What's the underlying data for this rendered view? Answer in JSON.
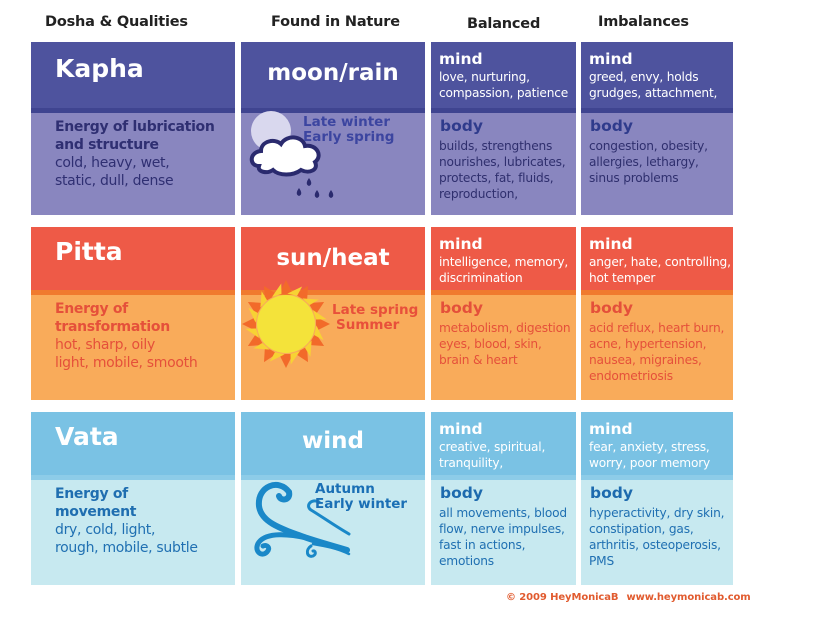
{
  "headers": [
    "Dosha & Qualities",
    "Found in Nature",
    "Balanced",
    "Imbalances"
  ],
  "rows": [
    {
      "dosha": "Kapha",
      "qual_title": [
        "Energy of lubrication",
        "and structure"
      ],
      "qual_text": [
        "cold, heavy, wet,",
        "static, dull, dense"
      ],
      "nature": "moon/rain",
      "season": [
        "Late winter",
        "Early spring"
      ],
      "icon": "moon-rain-icon",
      "balanced": {
        "mind_label": "mind",
        "mind": [
          "love, nurturing,",
          "compassion, patience"
        ],
        "body_label": "body",
        "body": [
          "builds, strengthens",
          "nourishes, lubricates,",
          "protects, fat, fluids,",
          "reproduction,"
        ]
      },
      "imbalances": {
        "mind_label": "mind",
        "mind": [
          "greed, envy, holds",
          "grudges, attachment,"
        ],
        "body_label": "body",
        "body": [
          "congestion, obesity,",
          "allergies, lethargy,",
          "sinus problems"
        ]
      },
      "colors": {
        "top": "#4e539e",
        "stripe": "#3f4490",
        "bottom": "#8986bf",
        "qual_title": "#2f2f72",
        "qual_text": "#2f2f72",
        "body_label": "#2f3b8c",
        "body_text": "#2f2f6e",
        "season": "#3c45a0"
      }
    },
    {
      "dosha": "Pitta",
      "qual_title": [
        "Energy of",
        "transformation"
      ],
      "qual_text": [
        "hot, sharp, oily",
        "light, mobile, smooth"
      ],
      "nature": "sun/heat",
      "season": [
        "Late spring",
        "Summer"
      ],
      "icon": "sun-icon",
      "balanced": {
        "mind_label": "mind",
        "mind": [
          "intelligence, memory,",
          "discrimination"
        ],
        "body_label": "body",
        "body": [
          "metabolism, digestion",
          "eyes, blood, skin,",
          "brain & heart"
        ]
      },
      "imbalances": {
        "mind_label": "mind",
        "mind": [
          "anger, hate, controlling,",
          "hot temper"
        ],
        "body_label": "body",
        "body": [
          "acid reflux, heart burn,",
          "acne, hypertension,",
          "nausea, migraines,",
          "endometriosis"
        ]
      },
      "colors": {
        "top": "#ee5a47",
        "stripe": "#f07a2e",
        "bottom": "#f9ab5a",
        "qual_title": "#e5503a",
        "qual_text": "#e5503a",
        "body_label": "#e4503a",
        "body_text": "#e5503a",
        "season": "#e8503a"
      }
    },
    {
      "dosha": "Vata",
      "qual_title": [
        "Energy of",
        "movement"
      ],
      "qual_text": [
        "dry, cold, light,",
        "rough, mobile, subtle"
      ],
      "nature": "wind",
      "season": [
        "Autumn",
        "Early winter"
      ],
      "icon": "wind-icon",
      "balanced": {
        "mind_label": "mind",
        "mind": [
          "creative, spiritual,",
          "tranquility,"
        ],
        "body_label": "body",
        "body": [
          "all movements, blood",
          "flow, nerve impulses,",
          "fast in actions,",
          "emotions"
        ]
      },
      "imbalances": {
        "mind_label": "mind",
        "mind": [
          "fear, anxiety, stress,",
          "worry, poor memory"
        ],
        "body_label": "body",
        "body": [
          "hyperactivity, dry skin,",
          "constipation, gas,",
          "arthritis, osteoperosis,",
          "PMS"
        ]
      },
      "colors": {
        "top": "#7ac2e4",
        "stripe": "#8dcce8",
        "bottom": "#c7e9f0",
        "qual_title": "#1f6eb0",
        "qual_text": "#2070b2",
        "body_label": "#1d6aae",
        "body_text": "#2070b2",
        "season": "#1a6fb5"
      }
    }
  ],
  "footer": {
    "copyright": "© 2009 HeyMonicaB",
    "url": "www.heymonicab.com"
  }
}
